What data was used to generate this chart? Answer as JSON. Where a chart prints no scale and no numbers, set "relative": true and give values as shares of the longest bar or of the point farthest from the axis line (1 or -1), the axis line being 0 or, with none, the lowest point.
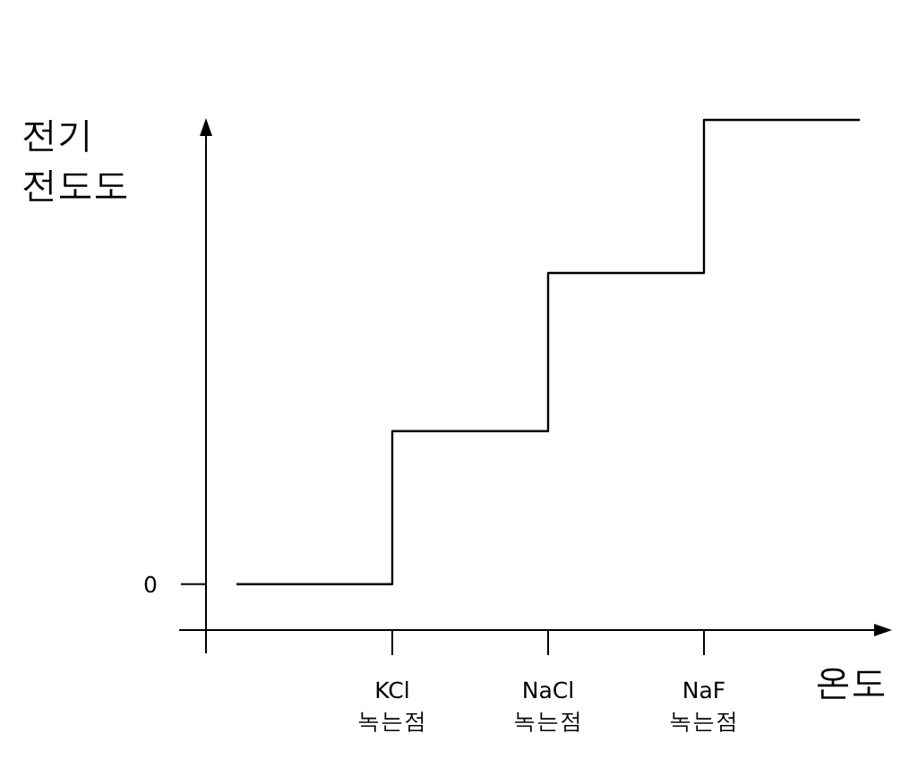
{
  "chart_data": {
    "type": "step",
    "relative": true,
    "ylabel": "전기 전도도",
    "xlabel": "온도",
    "categories": [
      null,
      "KCl 녹는점",
      "NaCl 녹는점",
      "NaF 녹는점",
      null
    ],
    "values": [
      0.09,
      0.39,
      0.7,
      1,
      1
    ],
    "color": "#000000",
    "annotations": [
      "0"
    ]
  }
}
